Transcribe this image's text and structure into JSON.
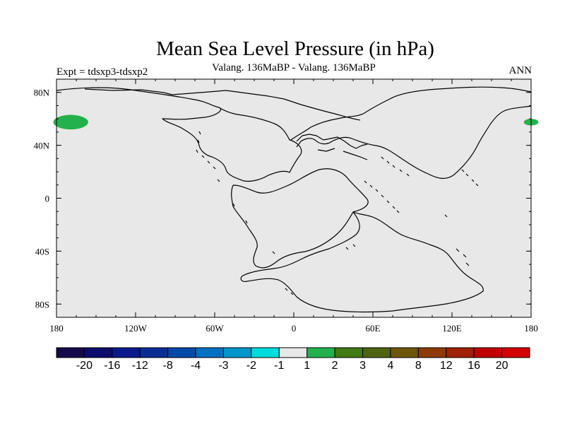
{
  "header": {
    "title": "Mean Sea Level Pressure (in hPa)",
    "subtitle": "Valang. 136MaBP - Valang. 136MaBP",
    "left_label": "Expt = tdsxp3-tdsxp2",
    "right_label": "ANN"
  },
  "map": {
    "background_color": "#e8e8e8",
    "coast_color": "#000000",
    "lon_range": [
      -180,
      180
    ],
    "lat_range": [
      -90,
      90
    ],
    "x_ticks": [
      {
        "value": -180,
        "label": "180"
      },
      {
        "value": -120,
        "label": "120W"
      },
      {
        "value": -60,
        "label": "60W"
      },
      {
        "value": 0,
        "label": "0"
      },
      {
        "value": 60,
        "label": "60E"
      },
      {
        "value": 120,
        "label": "120E"
      },
      {
        "value": 180,
        "label": "180"
      }
    ],
    "y_ticks": [
      {
        "value": 80,
        "label": "80N"
      },
      {
        "value": 40,
        "label": "40N"
      },
      {
        "value": 0,
        "label": "0"
      },
      {
        "value": -40,
        "label": "40S"
      },
      {
        "value": -80,
        "label": "80S"
      }
    ],
    "anomalies": [
      {
        "category": "1 to 2",
        "color": "#22b14c",
        "lon_range": [
          -180,
          -156
        ],
        "lat_range": [
          52,
          63
        ]
      },
      {
        "category": "1 to 2",
        "color": "#22b14c",
        "lon_range": [
          175,
          180
        ],
        "lat_range": [
          55,
          60
        ]
      }
    ]
  },
  "colorbar": {
    "colors": [
      "#160a4d",
      "#0d0d6e",
      "#0a1a8c",
      "#0a2d96",
      "#004aa8",
      "#0070c0",
      "#0096cc",
      "#00dcdc",
      "#e8e8e8",
      "#22b14c",
      "#3f7a14",
      "#4e6412",
      "#6e5608",
      "#8c3a08",
      "#a02008",
      "#c00000",
      "#d40000"
    ],
    "labels": [
      "-20",
      "-16",
      "-12",
      "-8",
      "-4",
      "-3",
      "-2",
      "-1",
      "1",
      "2",
      "3",
      "4",
      "8",
      "12",
      "16",
      "20"
    ]
  }
}
